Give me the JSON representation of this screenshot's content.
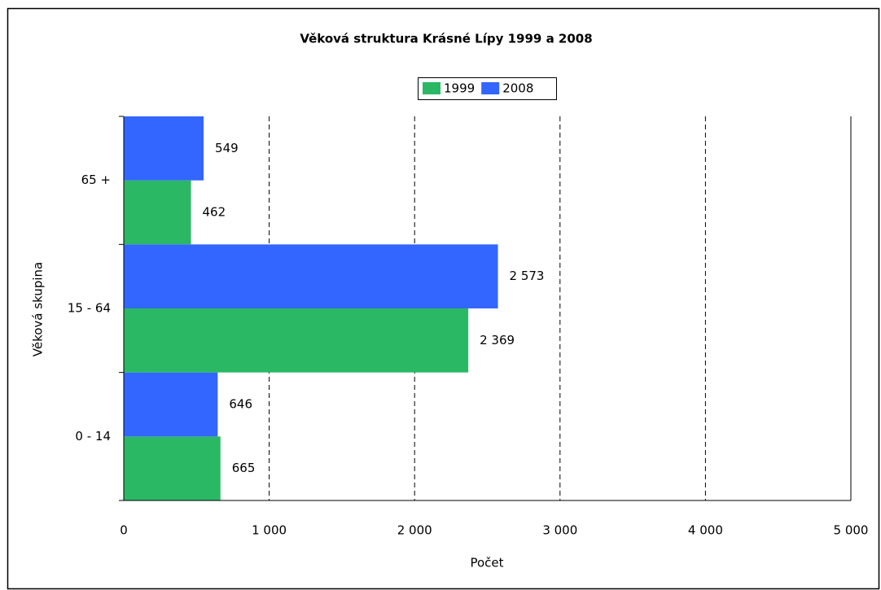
{
  "chart_data": {
    "type": "hbar",
    "title": "Věková struktura Krásné Lípy 1999 a 2008",
    "xlabel": "Počet",
    "ylabel": "Věková skupina",
    "categories": [
      "0 - 14",
      "15 - 64",
      "65 +"
    ],
    "series": [
      {
        "name": "1999",
        "color": "#2ab865",
        "values": [
          665,
          2369,
          462
        ],
        "value_labels": [
          "665",
          "2 369",
          "462"
        ]
      },
      {
        "name": "2008",
        "color": "#3366ff",
        "values": [
          646,
          2573,
          549
        ],
        "value_labels": [
          "646",
          "2 573",
          "549"
        ]
      }
    ],
    "xlim": [
      0,
      5000
    ],
    "xticks": [
      0,
      {
        "value": 1000,
        "label": "1 000"
      },
      {
        "value": 2000,
        "label": "2 000"
      },
      {
        "value": 3000,
        "label": "3 000"
      },
      {
        "value": 4000,
        "label": "4 000"
      },
      {
        "value": 5000,
        "label": "5 000"
      }
    ],
    "grid": true,
    "legend": "top"
  }
}
